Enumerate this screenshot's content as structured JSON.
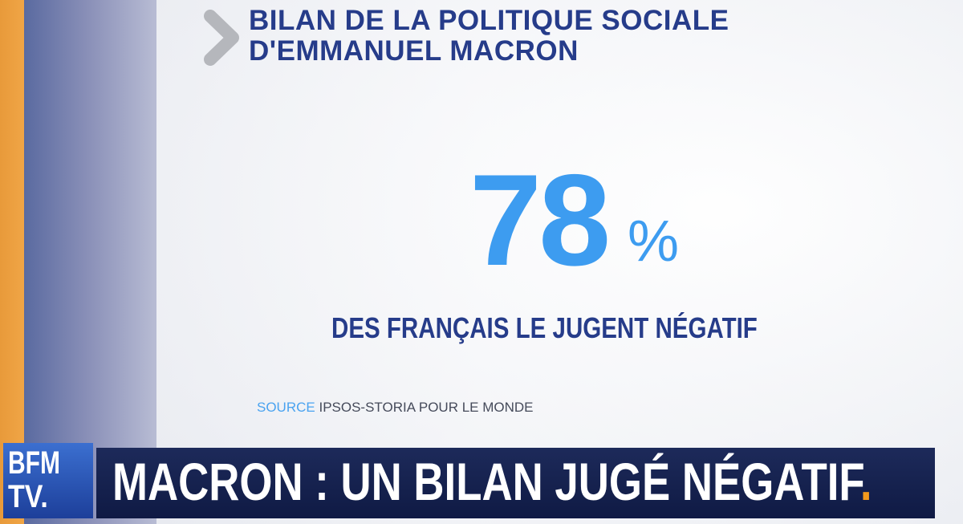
{
  "card": {
    "title_lines": [
      "BILAN DE LA POLITIQUE SOCIALE",
      "D'EMMANUEL MACRON"
    ],
    "stat": {
      "value": 78,
      "unit": "%"
    },
    "caption": "DES FRANÇAIS LE JUGENT NÉGATIF",
    "source": {
      "label": "SOURCE",
      "text": "IPSOS-STORIA POUR LE MONDE"
    }
  },
  "banner": {
    "headline": "MACRON : UN BILAN JUGÉ NÉGATIF",
    "dot": "."
  },
  "logo": {
    "line1": "BFM",
    "line2": "TV."
  }
}
